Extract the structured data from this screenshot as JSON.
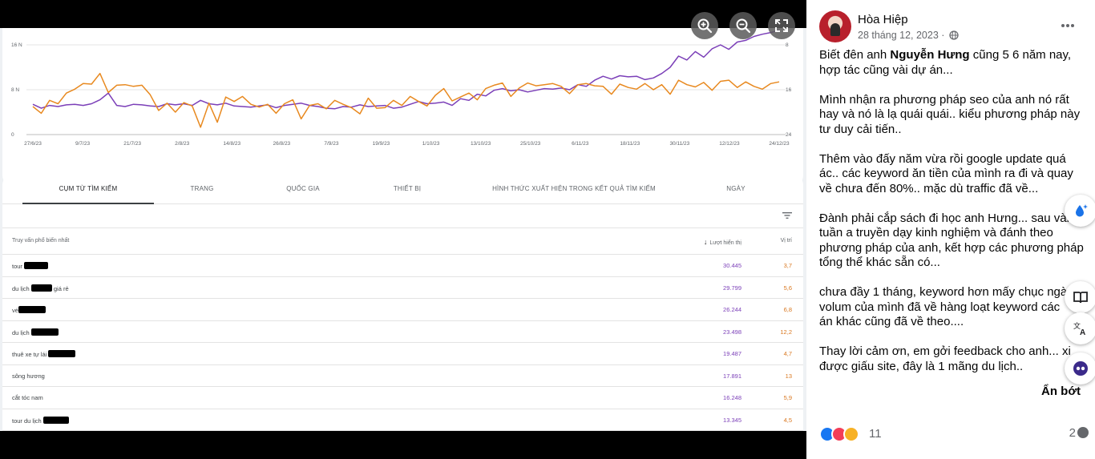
{
  "chart_data": {
    "type": "line",
    "x_ticks": [
      "27/6/23",
      "9/7/23",
      "21/7/23",
      "2/8/23",
      "14/8/23",
      "26/8/23",
      "7/9/23",
      "19/9/23",
      "1/10/23",
      "13/10/23",
      "25/10/23",
      "6/11/23",
      "18/11/23",
      "30/11/23",
      "12/12/23",
      "24/12/23"
    ],
    "y_left_ticks": [
      "16 N",
      "8 N",
      "0"
    ],
    "y_right_ticks": [
      "8",
      "16",
      "24"
    ],
    "y_left_range": [
      0,
      16000
    ],
    "y_right_range": [
      24,
      8
    ],
    "grid": true,
    "series": [
      {
        "color": "#7b3fb8",
        "axis": "left",
        "values": [
          5.4,
          4.7,
          5.2,
          5.0,
          5.3,
          5.4,
          5.2,
          5.5,
          6.2,
          7.4,
          5.2,
          5.0,
          5.4,
          5.3,
          5.1,
          5.0,
          5.5,
          5.3,
          5.5,
          5.2,
          6.1,
          5.5,
          5.3,
          5.6,
          5.1,
          5.0,
          4.9,
          5.1,
          5.3,
          4.8,
          5.2,
          5.4,
          5.6,
          5.2,
          5.0,
          4.7,
          4.6,
          5.0,
          4.9,
          5.3,
          5.0,
          5.1,
          5.2,
          4.7,
          4.9,
          5.4,
          5.9,
          5.5,
          5.6,
          5.8,
          5.2,
          6.4,
          6.1,
          7.2,
          6.9,
          7.9,
          8.2,
          7.8,
          8.0,
          7.6,
          7.9,
          8.2,
          8.1,
          8.3,
          8.0,
          8.9,
          8.6,
          9.7,
          10.4,
          9.9,
          10.5,
          10.3,
          10.4,
          9.8,
          10.1,
          10.9,
          12.0,
          14.0,
          13.3,
          14.8,
          13.8,
          15.3,
          16.0,
          15.2,
          16.5,
          16.8,
          17.5,
          17.9,
          18.2,
          18.6
        ]
      },
      {
        "color": "#e8891f",
        "axis": "right",
        "values": [
          19.0,
          20.2,
          17.9,
          18.5,
          16.6,
          15.9,
          14.9,
          15.0,
          13.1,
          16.5,
          15.2,
          15.1,
          15.4,
          15.2,
          16.9,
          19.7,
          18.4,
          20.0,
          18.3,
          18.9,
          22.7,
          18.4,
          21.8,
          17.3,
          18.1,
          17.2,
          18.6,
          19.1,
          18.6,
          20.2,
          18.5,
          17.8,
          21.2,
          18.8,
          18.5,
          19.4,
          17.9,
          18.6,
          19.2,
          20.3,
          17.5,
          19.3,
          19.2,
          17.9,
          18.8,
          17.2,
          18.1,
          18.9,
          17.0,
          15.8,
          18.0,
          17.3,
          16.6,
          17.8,
          15.8,
          15.2,
          14.8,
          17.2,
          15.7,
          14.8,
          15.3,
          15.1,
          14.9,
          15.4,
          16.7,
          15.1,
          14.9,
          15.3,
          15.4,
          16.8,
          15.0,
          15.6,
          15.9,
          14.9,
          16.0,
          15.1,
          16.8,
          14.3,
          15.1,
          15.5,
          14.7,
          16.1,
          14.5,
          14.3,
          15.6,
          14.6,
          15.4,
          15.9,
          14.9,
          14.6
        ]
      }
    ]
  },
  "tabs": [
    "Cụm từ tìm kiếm",
    "Trang",
    "Quốc gia",
    "Thiết bị",
    "Hình thức xuất hiện trong kết quả tìm kiếm",
    "Ngày"
  ],
  "table": {
    "col_query": "Truy vấn phổ biến nhất",
    "col_impressions": "Lượt hiển thị",
    "col_position": "Vị trí",
    "rows": [
      {
        "q1": "tour",
        "q2": "",
        "impressions": "30.445",
        "position": "3,7"
      },
      {
        "q1": "du lịch",
        "q2": "giá rẻ",
        "impressions": "29.799",
        "position": "5,6"
      },
      {
        "q1": "vé",
        "q2": "",
        "impressions": "26.244",
        "position": "6,8"
      },
      {
        "q1": "du lịch",
        "q2": "",
        "impressions": "23.498",
        "position": "12,2"
      },
      {
        "q1": "thuê xe tự lái",
        "q2": "",
        "impressions": "19.487",
        "position": "4,7"
      },
      {
        "q1": "sông hương",
        "q2": "",
        "impressions": "17.891",
        "position": "13"
      },
      {
        "q1": "cắt tóc nam",
        "q2": "",
        "impressions": "16.248",
        "position": "5,9"
      },
      {
        "q1": "tour du lịch",
        "q2": "",
        "impressions": "13.345",
        "position": "4,5"
      }
    ]
  },
  "post": {
    "author": "Hòa Hiệp",
    "date": "28 tháng 12, 2023 ·",
    "p1_a": "Biết đên anh ",
    "p1_b": "Nguyễn Hưng",
    "p1_c": " cũng 5 6 năm nay,",
    "p1_d": "hợp tác cũng vài dự án...",
    "p2": [
      "Mình nhận ra phương pháp seo của anh nó rất",
      "hay và nó là lạ quái quái.. kiểu phương pháp này",
      "tư duy cải tiến.."
    ],
    "p3": [
      "Thêm vào đấy năm vừa rồi google update quá",
      "ác.. các keyword ăn tiền của mình ra đi và quay",
      "về chưa đến 80%.. mặc dù traffic đã về..."
    ],
    "p4": [
      "Đành phải cắp sách đi học anh Hưng... sau vài",
      "tuần a truyền dạy kinh nghiệm và đánh theo",
      "phương pháp của anh, kết hợp các phương pháp",
      "tổng thể khác sẵn có..."
    ],
    "p5": [
      "chưa đầy 1 tháng, keyword hơn mấy chục ngà",
      "volum của mình đã về hàng loạt keyword các",
      "án khác cũng đã về theo...."
    ],
    "p6": [
      "Thay lời cảm ơn, em gởi feedback cho anh... xi",
      "được giấu site, đây là 1 mãng du lịch.."
    ],
    "see_less": "Ẩn bớt",
    "reaction_count": "11",
    "comment_count": "2"
  },
  "icons": {
    "zoom_in": "zoom-in-icon",
    "zoom_out": "zoom-out-icon",
    "fullscreen": "fullscreen-icon",
    "filter": "filter-icon",
    "globe": "globe-icon",
    "more": "more-icon"
  }
}
